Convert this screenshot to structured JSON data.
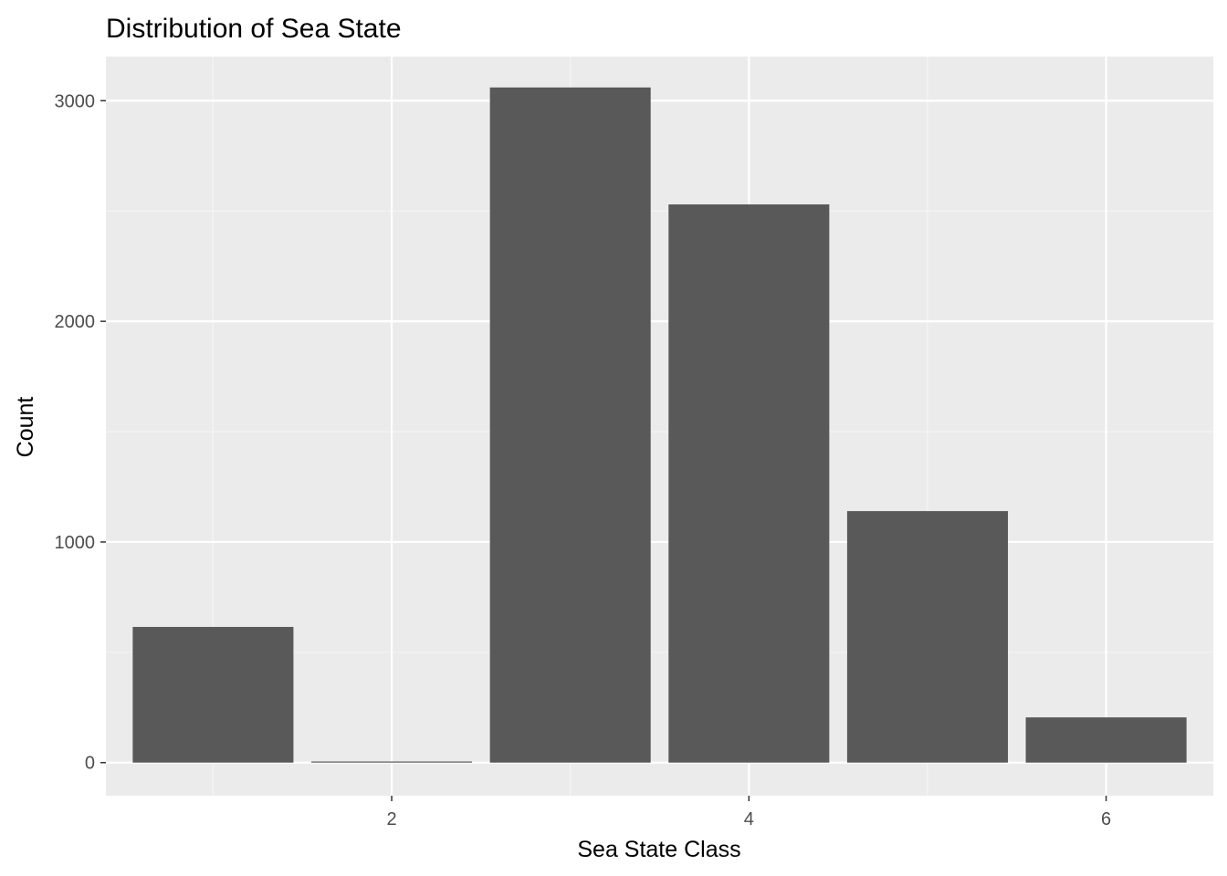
{
  "chart_data": {
    "type": "bar",
    "title": "Distribution of Sea State",
    "xlabel": "Sea State Class",
    "ylabel": "Count",
    "x": [
      1,
      2,
      3,
      4,
      5,
      6
    ],
    "values": [
      615,
      5,
      3060,
      2530,
      1140,
      205
    ],
    "xlim": [
      0.4,
      6.6
    ],
    "ylim": [
      -150,
      3200
    ],
    "xticks": [
      2,
      4,
      6
    ],
    "xtick_labels": [
      "2",
      "4",
      "6"
    ],
    "yticks": [
      0,
      1000,
      2000,
      3000
    ],
    "ytick_labels": [
      "0",
      "1000",
      "2000",
      "3000"
    ],
    "grid": true,
    "legend": "none",
    "colors": {
      "bar": "#595959",
      "panel": "#ebebeb",
      "grid_major": "#ffffff",
      "grid_minor": "#f5f5f5",
      "tick": "#333333"
    }
  }
}
